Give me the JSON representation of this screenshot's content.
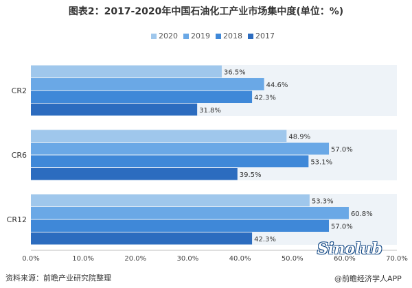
{
  "chart_data": {
    "type": "bar",
    "orientation": "horizontal",
    "title": "图表2：2017-2020年中国石油化工产业市场集中度(单位：%)",
    "categories": [
      "CR2",
      "CR6",
      "CR12"
    ],
    "series": [
      {
        "name": "2020",
        "values": [
          36.5,
          48.9,
          53.3
        ],
        "color": "#9fc7ec"
      },
      {
        "name": "2019",
        "values": [
          44.6,
          57.0,
          60.8
        ],
        "color": "#6aa8e6"
      },
      {
        "name": "2018",
        "values": [
          42.3,
          53.1,
          57.0
        ],
        "color": "#3f88d8"
      },
      {
        "name": "2017",
        "values": [
          31.8,
          39.5,
          42.3
        ],
        "color": "#2c6cbf"
      }
    ],
    "value_labels": [
      [
        "36.5%",
        "48.9%",
        "53.3%"
      ],
      [
        "44.6%",
        "57.0%",
        "60.8%"
      ],
      [
        "42.3%",
        "53.1%",
        "57.0%"
      ],
      [
        "31.8%",
        "39.5%",
        "42.3%"
      ]
    ],
    "xlim": [
      0,
      70
    ],
    "xticks": [
      0,
      10,
      20,
      30,
      40,
      50,
      60,
      70
    ],
    "xtick_labels": [
      "0.0%",
      "10.0%",
      "20.0%",
      "30.0%",
      "40.0%",
      "50.0%",
      "60.0%",
      "70.0%"
    ],
    "legend_position": "top",
    "grid": false
  },
  "footer": {
    "source": "资料来源：前瞻产业研究院整理"
  },
  "watermark": {
    "sinolub": "Sinolub",
    "app": "@前瞻经济学人APP"
  }
}
